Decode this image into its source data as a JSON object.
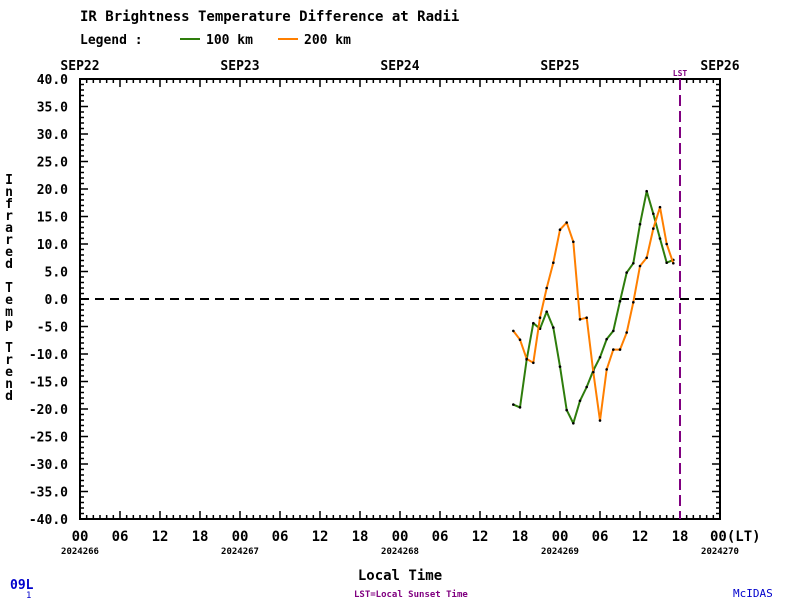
{
  "chart_data": {
    "type": "line",
    "title": "IR Brightness Temperature Difference at Radii",
    "legend_label": "Legend :",
    "xlabel": "Local Time",
    "ylabel": "Infrared Temp Trend",
    "ylim": [
      -40,
      40
    ],
    "xlim_hours": [
      0,
      96
    ],
    "y_ticks": [
      "40.0",
      "35.0",
      "30.0",
      "25.0",
      "20.0",
      "15.0",
      "10.0",
      "5.0",
      "0.0",
      "-5.0",
      "-10.0",
      "-15.0",
      "-20.0",
      "-25.0",
      "-30.0",
      "-35.0",
      "-40.0"
    ],
    "x_tick_labels": [
      "00",
      "06",
      "12",
      "18",
      "00",
      "06",
      "12",
      "18",
      "00",
      "06",
      "12",
      "18",
      "00",
      "06",
      "12",
      "18",
      "00(LT)"
    ],
    "date_labels_top": [
      "SEP22",
      "SEP23",
      "SEP24",
      "SEP25",
      "SEP26"
    ],
    "julian_labels_bottom": [
      "2024266",
      "2024267",
      "2024268",
      "2024269",
      "2024270"
    ],
    "zero_line": 0,
    "sunset_marker": {
      "label": "LST",
      "hour": 90,
      "color": "#800080"
    },
    "series": [
      {
        "name": "100 km",
        "color": "#2e7d0c",
        "x": [
          65,
          66,
          67,
          68,
          69,
          70,
          71,
          72,
          73,
          74,
          75,
          76,
          77,
          78,
          79,
          80,
          81,
          82,
          83,
          84,
          85,
          86,
          87,
          88,
          89
        ],
        "y": [
          -19.2,
          -19.7,
          -11,
          -4.4,
          -5.4,
          -2.3,
          -5.2,
          -12.3,
          -20.2,
          -22.6,
          -18.5,
          -16,
          -13,
          -10.6,
          -7.3,
          -5.8,
          -0.4,
          4.8,
          6.5,
          13.6,
          19.6,
          15.5,
          11,
          6.6,
          7.1
        ]
      },
      {
        "name": "200 km",
        "color": "#ff7f00",
        "x": [
          65,
          66,
          67,
          68,
          69,
          70,
          71,
          72,
          73,
          74,
          75,
          76,
          77,
          78,
          79,
          80,
          81,
          82,
          83,
          84,
          85,
          86,
          87,
          88,
          89
        ],
        "y": [
          -5.8,
          -7.4,
          -10.9,
          -11.6,
          -3.4,
          2,
          6.6,
          12.6,
          13.9,
          10.4,
          -3.7,
          -3.4,
          -13.3,
          -22.1,
          -12.8,
          -9.2,
          -9.2,
          -6.1,
          -0.6,
          6,
          7.5,
          12.8,
          16.7,
          10,
          6.5
        ]
      }
    ]
  },
  "footer": {
    "storm_id": "09L",
    "storm_sub": "1",
    "lst_note": "LST=Local Sunset Time",
    "brand": "McIDAS"
  }
}
